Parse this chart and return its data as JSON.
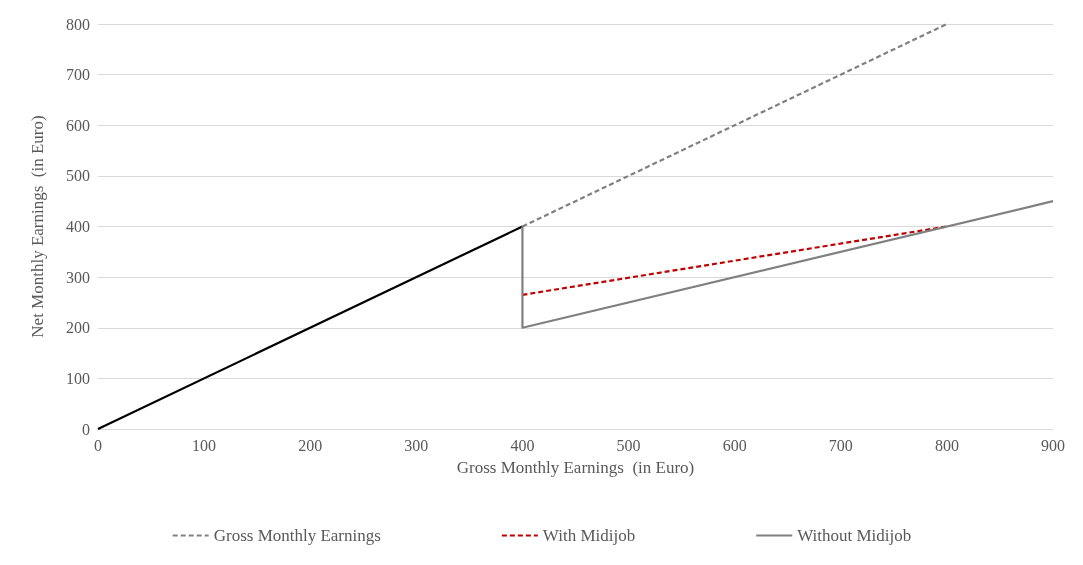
{
  "chart_data": {
    "type": "line",
    "xlabel": "Gross Monthly Earnings  (in Euro)",
    "ylabel": "Net Monthly Earnings  (in Euro)",
    "xlim": [
      0,
      900
    ],
    "xticks": [
      0,
      100,
      200,
      300,
      400,
      500,
      600,
      700,
      800,
      900
    ],
    "ylim": [
      0,
      800
    ],
    "yticks": [
      0,
      100,
      200,
      300,
      400,
      500,
      600,
      700,
      800
    ],
    "grid": "y",
    "legend": "bottom",
    "marker": "none",
    "series": [
      {
        "color": "#000000",
        "x": [
          0,
          400
        ],
        "values": [
          0,
          400
        ],
        "line_style": "solid"
      },
      {
        "name": "Gross Monthly Earnings",
        "color": "#808080",
        "x": [
          400,
          800
        ],
        "values": [
          400,
          800
        ],
        "line_style": "dashed"
      },
      {
        "name": "With Midijob",
        "color": "#c00000",
        "x": [
          400,
          800
        ],
        "values": [
          265,
          400
        ],
        "line_style": "dashed"
      },
      {
        "name": "Without Midijob",
        "color": "#808080",
        "x": [
          400,
          400,
          900
        ],
        "values": [
          400,
          200,
          450
        ],
        "line_style": "solid"
      }
    ]
  }
}
